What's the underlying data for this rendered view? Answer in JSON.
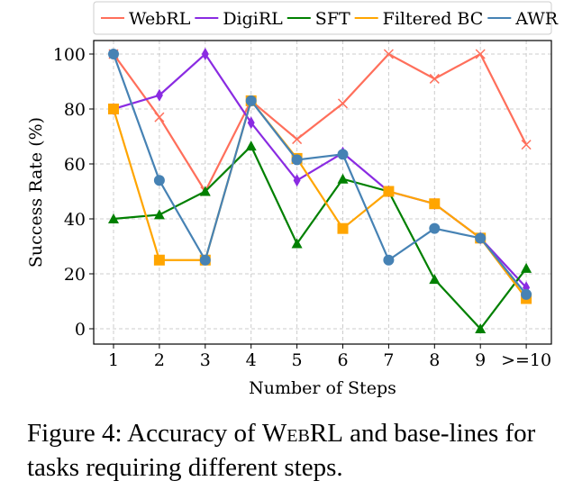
{
  "chart_data": {
    "type": "line",
    "xlabel": "Number of Steps",
    "ylabel": "Success Rate (%)",
    "categories": [
      "1",
      "2",
      "3",
      "4",
      "5",
      "6",
      "7",
      "8",
      "9",
      ">=10"
    ],
    "ylim": [
      -5,
      105
    ],
    "yticks": [
      0,
      20,
      40,
      60,
      80,
      100
    ],
    "grid": true,
    "legend_position": "top",
    "series": [
      {
        "name": "WebRL",
        "color": "#FF6F5B",
        "marker": "x",
        "values": [
          100,
          77,
          50,
          83,
          69,
          82,
          100,
          91,
          100,
          67
        ]
      },
      {
        "name": "DigiRL",
        "color": "#8A2BE2",
        "marker": "diamond",
        "values": [
          80,
          85,
          100,
          75,
          54,
          64,
          50,
          45.5,
          33,
          15
        ]
      },
      {
        "name": "SFT",
        "color": "#008000",
        "marker": "triangle",
        "values": [
          40,
          41.5,
          50,
          66.5,
          31,
          54.5,
          50,
          18,
          0,
          22
        ]
      },
      {
        "name": "Filtered BC",
        "color": "#FFA500",
        "marker": "square",
        "values": [
          80,
          25,
          25,
          83,
          62,
          36.5,
          50,
          45.5,
          33,
          11
        ]
      },
      {
        "name": "AWR",
        "color": "#4682B4",
        "marker": "circle",
        "values": [
          100,
          54,
          25,
          83,
          61.5,
          63.5,
          25,
          36.5,
          33,
          12.5
        ]
      }
    ]
  },
  "caption": {
    "prefix": "Figure 4:  Accuracy of ",
    "name": "WebRL",
    "suffix": " and base-lines for tasks requiring different steps."
  }
}
